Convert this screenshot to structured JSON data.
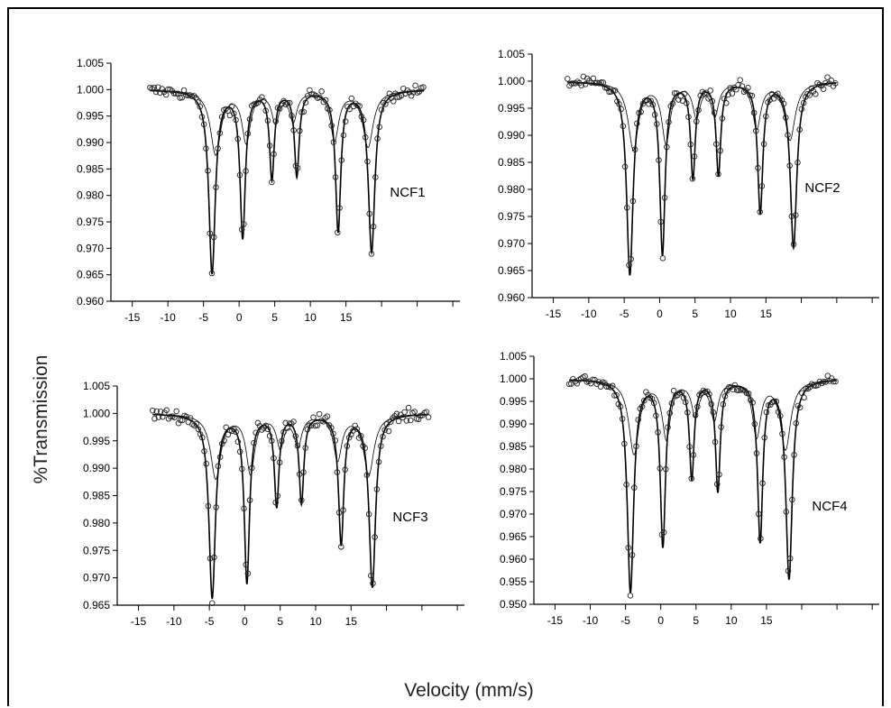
{
  "figure": {
    "ylabel": "%Transmission",
    "xlabel": "Velocity (mm/s)"
  },
  "chart_data": [
    {
      "type": "scatter",
      "name": "NCF1",
      "label": "NCF1",
      "x_ticks": [
        -15,
        -10,
        -5,
        0,
        5,
        10,
        15
      ],
      "y_ticks": [
        0.96,
        0.965,
        0.97,
        0.975,
        0.98,
        0.985,
        0.99,
        0.995,
        1.0,
        1.005
      ],
      "xlim": [
        -18,
        31
      ],
      "ylim": [
        0.96,
        1.005
      ],
      "x_range": [
        -12.5,
        26
      ],
      "line_positions": [
        -3.8,
        0.5,
        4.6,
        8.1,
        13.9,
        18.6
      ],
      "line_depths": [
        0.0345,
        0.0275,
        0.0165,
        0.016,
        0.0265,
        0.0305
      ],
      "line_widths": [
        0.55,
        0.45,
        0.4,
        0.4,
        0.45,
        0.55
      ]
    },
    {
      "type": "scatter",
      "name": "NCF2",
      "label": "NCF2",
      "x_ticks": [
        -15,
        -10,
        -5,
        0,
        5,
        10,
        15
      ],
      "y_ticks": [
        0.96,
        0.965,
        0.97,
        0.975,
        0.98,
        0.985,
        0.99,
        0.995,
        1.0,
        1.005
      ],
      "xlim": [
        -18,
        31
      ],
      "ylim": [
        0.96,
        1.005
      ],
      "x_range": [
        -13,
        25
      ],
      "line_positions": [
        -4.2,
        0.4,
        4.7,
        8.3,
        14.2,
        18.9
      ],
      "line_depths": [
        0.0355,
        0.0315,
        0.0175,
        0.017,
        0.024,
        0.0305
      ],
      "line_widths": [
        0.55,
        0.45,
        0.4,
        0.4,
        0.45,
        0.55
      ]
    },
    {
      "type": "scatter",
      "name": "NCF3",
      "label": "NCF3",
      "x_ticks": [
        -15,
        -10,
        -5,
        0,
        5,
        10,
        15
      ],
      "y_ticks": [
        0.965,
        0.97,
        0.975,
        0.98,
        0.985,
        0.99,
        0.995,
        1.0,
        1.005
      ],
      "xlim": [
        -18,
        31
      ],
      "ylim": [
        0.965,
        1.005
      ],
      "x_range": [
        -13,
        26
      ],
      "line_positions": [
        -4.6,
        0.3,
        4.5,
        8.0,
        13.6,
        18.0
      ],
      "line_depths": [
        0.0335,
        0.0305,
        0.0165,
        0.016,
        0.0235,
        0.0315
      ],
      "line_widths": [
        0.55,
        0.45,
        0.4,
        0.4,
        0.45,
        0.55
      ]
    },
    {
      "type": "scatter",
      "name": "NCF4",
      "label": "NCF4",
      "x_ticks": [
        -15,
        -10,
        -5,
        0,
        5,
        10,
        15
      ],
      "y_ticks": [
        0.95,
        0.955,
        0.96,
        0.965,
        0.97,
        0.975,
        0.98,
        0.985,
        0.99,
        0.995,
        1.0,
        1.005
      ],
      "xlim": [
        -18,
        31
      ],
      "ylim": [
        0.95,
        1.005
      ],
      "x_range": [
        -13,
        25
      ],
      "line_positions": [
        -4.3,
        0.3,
        4.4,
        8.1,
        14.1,
        18.2
      ],
      "line_depths": [
        0.047,
        0.0365,
        0.0215,
        0.0245,
        0.0355,
        0.044
      ],
      "line_widths": [
        0.55,
        0.45,
        0.4,
        0.4,
        0.45,
        0.55
      ]
    }
  ]
}
